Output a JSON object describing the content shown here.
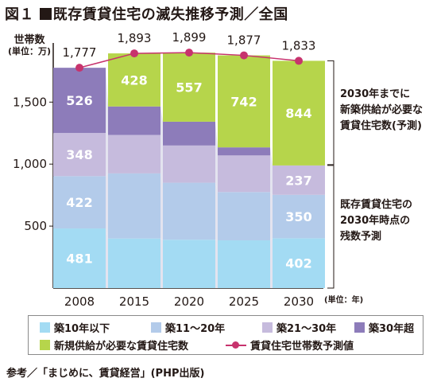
{
  "figure": {
    "label": "図１",
    "title": "既存賃貸住宅の滅失推移予測／全国",
    "source": "参考／「まじめに、賃貸経営」(PHP出版)"
  },
  "chart_data": {
    "type": "bar",
    "stacked": true,
    "categories": [
      "2008",
      "2015",
      "2020",
      "2025",
      "2030"
    ],
    "ylabel": "世帯数",
    "yunit": "(単位：万)",
    "xunit": "(単位：年)",
    "ylim": [
      0,
      1900
    ],
    "yticks": [
      500,
      1000,
      1500
    ],
    "ytick_labels": [
      "500",
      "1,000",
      "1,500"
    ],
    "series": [
      {
        "name": "築10年以下",
        "color": "#a3dbf3",
        "values": [
          481,
          400,
          390,
          385,
          402
        ],
        "labels": [
          "481",
          "",
          "",
          "",
          "402"
        ]
      },
      {
        "name": "築11～20年",
        "color": "#b3cbea",
        "values": [
          422,
          525,
          460,
          390,
          350
        ],
        "labels": [
          "422",
          "",
          "",
          "",
          "350"
        ]
      },
      {
        "name": "築21～30年",
        "color": "#c6bbdd",
        "values": [
          348,
          310,
          300,
          295,
          237
        ],
        "labels": [
          "348",
          "",
          "",
          "",
          "237"
        ]
      },
      {
        "name": "築30年超",
        "color": "#8d7cba",
        "values": [
          526,
          230,
          192,
          65,
          0
        ],
        "labels": [
          "526",
          "",
          "",
          "",
          ""
        ]
      },
      {
        "name": "新規供給が必要な賃貸住宅数",
        "color": "#b6d54b",
        "values": [
          0,
          428,
          557,
          742,
          844
        ],
        "labels": [
          "",
          "428",
          "557",
          "742",
          "844"
        ]
      }
    ],
    "line": {
      "name": "賃貸住宅世帯数予測値",
      "color": "#c7336d",
      "values": [
        1777,
        1893,
        1899,
        1877,
        1833
      ],
      "labels": [
        "1,777",
        "1,893",
        "1,899",
        "1,877",
        "1,833"
      ]
    },
    "annotations": [
      {
        "text": [
          "2030年までに",
          "新築供給が必要な",
          "賃貸住宅数(予測)"
        ],
        "category": "2030",
        "from": 996,
        "to": 1833
      },
      {
        "text": [
          "既存賃貸住宅の",
          "2030年時点の",
          "残数予測"
        ],
        "category": "2030",
        "from": 0,
        "to": 989
      }
    ],
    "legend": {
      "position": "bottom",
      "rows": [
        [
          "築10年以下",
          "築11～20年",
          "築21～30年",
          "築30年超"
        ],
        [
          "新規供給が必要な賃貸住宅数",
          "賃貸住宅世帯数予測値"
        ]
      ]
    },
    "grid": false
  }
}
